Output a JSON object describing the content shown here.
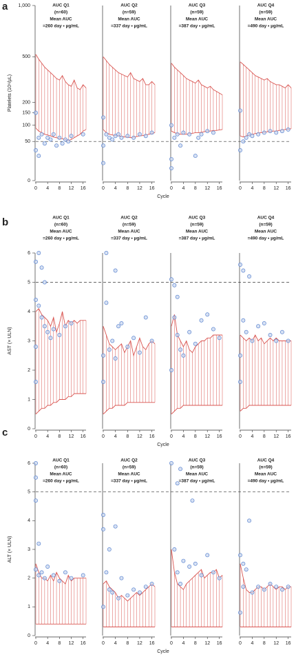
{
  "chart_data": [
    {
      "type": "band-scatter",
      "panel_label": "a",
      "ylabel": "Platelets (10⁹/μL)",
      "xlabel": "Cycle",
      "xlim": [
        0,
        17
      ],
      "xticks": [
        0,
        4,
        8,
        12,
        16
      ],
      "ylim": [
        0,
        1000
      ],
      "yscale": "sqrt",
      "yticks": [
        0,
        50,
        100,
        150,
        200,
        500,
        {
          "value": 1000,
          "label": "1,000"
        }
      ],
      "reference_line": 50,
      "band_color": "#d9534f",
      "point_color": "#5b84cf",
      "x": [
        0,
        1,
        2,
        3,
        4,
        5,
        6,
        7,
        8,
        9,
        10,
        11,
        12,
        13,
        14,
        15,
        16,
        17
      ],
      "subplots": [
        {
          "title": [
            "AUC Q1",
            "(n=60)",
            "Mean AUC",
            "=260 day • µg/mL"
          ],
          "upper": [
            520,
            480,
            450,
            420,
            400,
            380,
            360,
            340,
            330,
            360,
            320,
            300,
            290,
            330,
            280,
            270,
            300,
            280
          ],
          "lower": [
            90,
            80,
            75,
            70,
            68,
            65,
            62,
            60,
            58,
            57,
            55,
            52,
            55,
            60,
            65,
            70,
            80,
            85
          ],
          "points_x": [
            0,
            0,
            1,
            1,
            2,
            3,
            4,
            5,
            6,
            7,
            8,
            9,
            10,
            11,
            12,
            16
          ],
          "points_y": [
            150,
            30,
            20,
            60,
            70,
            45,
            60,
            55,
            70,
            40,
            60,
            45,
            55,
            50,
            65,
            70
          ]
        },
        {
          "title": [
            "AUC Q2",
            "(n=59)",
            "Mean AUC",
            "=337 day • µg/mL"
          ],
          "upper": [
            500,
            470,
            440,
            420,
            400,
            380,
            370,
            360,
            350,
            380,
            340,
            330,
            320,
            340,
            300,
            300,
            320,
            300
          ],
          "lower": [
            85,
            75,
            70,
            68,
            66,
            65,
            64,
            62,
            62,
            60,
            62,
            63,
            65,
            66,
            68,
            70,
            72,
            75
          ],
          "points_x": [
            0,
            0,
            0,
            1,
            2,
            3,
            4,
            5,
            6,
            8,
            10,
            12,
            14,
            16
          ],
          "points_y": [
            130,
            40,
            10,
            70,
            60,
            55,
            65,
            70,
            60,
            65,
            60,
            70,
            65,
            75
          ]
        },
        {
          "title": [
            "AUC Q3",
            "(n=59)",
            "Mean AUC",
            "=387 day • µg/mL"
          ],
          "upper": [
            450,
            420,
            400,
            380,
            360,
            340,
            330,
            320,
            310,
            330,
            300,
            290,
            280,
            290,
            270,
            260,
            250,
            240
          ],
          "lower": [
            80,
            75,
            72,
            70,
            70,
            70,
            72,
            73,
            75,
            75,
            76,
            78,
            80,
            80,
            82,
            82,
            84,
            85
          ],
          "points_x": [
            0,
            0,
            0,
            1,
            2,
            3,
            4,
            6,
            8,
            9,
            10,
            12,
            14
          ],
          "points_y": [
            100,
            5,
            15,
            60,
            70,
            40,
            75,
            70,
            20,
            60,
            70,
            80,
            75
          ]
        },
        {
          "title": [
            "AUC Q4",
            "(n=59)",
            "Mean AUC",
            "=490 day • µg/mL"
          ],
          "upper": [
            460,
            440,
            420,
            400,
            380,
            360,
            350,
            340,
            330,
            340,
            320,
            310,
            300,
            300,
            290,
            280,
            300,
            280
          ],
          "lower": [
            65,
            62,
            65,
            68,
            70,
            72,
            74,
            75,
            76,
            78,
            78,
            80,
            80,
            82,
            84,
            85,
            86,
            88
          ],
          "points_x": [
            0,
            0,
            1,
            2,
            3,
            4,
            6,
            8,
            10,
            12,
            14,
            16
          ],
          "points_y": [
            160,
            30,
            50,
            60,
            70,
            65,
            70,
            75,
            80,
            75,
            80,
            85
          ]
        }
      ]
    },
    {
      "type": "band-scatter",
      "panel_label": "b",
      "ylabel": "AST (× ULN)",
      "xlabel": "Cycle",
      "xlim": [
        0,
        17
      ],
      "xticks": [
        0,
        4,
        8,
        12,
        16
      ],
      "ylim": [
        0,
        6
      ],
      "yscale": "linear",
      "yticks": [
        0,
        1,
        2,
        3,
        4,
        5,
        6
      ],
      "reference_line": 5,
      "band_color": "#d9534f",
      "point_color": "#5b84cf",
      "x": [
        0,
        1,
        2,
        3,
        4,
        5,
        6,
        7,
        8,
        9,
        10,
        11,
        12,
        13,
        14,
        15,
        16,
        17
      ],
      "subplots": [
        {
          "title": [
            "AUC Q1",
            "(n=60)",
            "Mean AUC",
            "=260 day • µg/mL"
          ],
          "upper": [
            4.0,
            4.1,
            3.9,
            3.8,
            3.7,
            3.5,
            3.8,
            3.3,
            3.6,
            4.0,
            3.5,
            3.7,
            3.6,
            3.7,
            3.6,
            3.7,
            3.7,
            3.7
          ],
          "lower": [
            0.5,
            0.6,
            0.7,
            0.7,
            0.8,
            0.8,
            0.9,
            0.9,
            1.0,
            1.0,
            1.0,
            1.1,
            1.1,
            1.2,
            1.2,
            1.2,
            1.2,
            1.2
          ],
          "points_x": [
            0,
            1,
            2,
            3,
            0,
            1,
            2,
            3,
            4,
            5,
            6,
            8,
            10,
            12,
            0,
            0
          ],
          "points_y": [
            5.7,
            6.0,
            5.5,
            5.0,
            4.4,
            4.2,
            3.8,
            3.5,
            3.3,
            3.1,
            3.4,
            3.2,
            3.5,
            3.6,
            1.6,
            2.8
          ]
        },
        {
          "title": [
            "AUC Q2",
            "(n=59)",
            "Mean AUC",
            "=337 day • µg/mL"
          ],
          "upper": [
            3.5,
            3.2,
            2.9,
            2.8,
            2.7,
            2.8,
            2.9,
            2.6,
            2.8,
            3.0,
            2.5,
            2.8,
            3.1,
            2.8,
            2.7,
            2.9,
            3.0,
            2.9
          ],
          "lower": [
            0.5,
            0.6,
            0.7,
            0.7,
            0.8,
            0.8,
            0.8,
            0.8,
            0.9,
            0.9,
            0.9,
            0.9,
            0.9,
            0.9,
            0.9,
            0.9,
            0.9,
            0.9
          ],
          "points_x": [
            1,
            4,
            0,
            0,
            1,
            2,
            3,
            4,
            5,
            6,
            8,
            10,
            12,
            14,
            16
          ],
          "points_y": [
            6.0,
            5.4,
            1.6,
            2.5,
            4.3,
            2.7,
            3.0,
            2.4,
            3.5,
            3.6,
            2.8,
            3.1,
            2.6,
            3.8,
            3.0
          ]
        },
        {
          "title": [
            "AUC Q3",
            "(n=59)",
            "Mean AUC",
            "=387 day • µg/mL"
          ],
          "upper": [
            3.5,
            3.9,
            3.2,
            3.0,
            2.8,
            3.0,
            2.7,
            2.6,
            2.8,
            2.9,
            3.0,
            3.0,
            3.1,
            3.1,
            3.2,
            3.2,
            3.2,
            3.2
          ],
          "lower": [
            0.5,
            0.6,
            0.7,
            0.7,
            0.8,
            0.8,
            0.8,
            0.8,
            0.8,
            0.8,
            0.8,
            0.8,
            0.8,
            0.8,
            0.8,
            0.8,
            0.8,
            0.8
          ],
          "points_x": [
            0,
            1,
            2,
            0,
            1,
            2,
            3,
            4,
            6,
            8,
            10,
            12,
            14,
            16
          ],
          "points_y": [
            5.1,
            4.9,
            4.5,
            2.0,
            3.8,
            3.2,
            2.7,
            2.5,
            3.3,
            2.9,
            3.7,
            3.9,
            3.4,
            3.1
          ]
        },
        {
          "title": [
            "AUC Q4",
            "(n=59)",
            "Mean AUC",
            "=490 day • µg/mL"
          ],
          "upper": [
            3.2,
            3.1,
            3.0,
            3.1,
            3.0,
            3.2,
            3.0,
            3.1,
            2.9,
            3.0,
            3.1,
            3.0,
            3.1,
            3.0,
            3.0,
            3.0,
            3.0,
            3.0
          ],
          "lower": [
            0.6,
            0.7,
            0.7,
            0.8,
            0.8,
            0.8,
            0.8,
            0.8,
            0.8,
            0.8,
            0.8,
            0.8,
            0.8,
            0.8,
            0.8,
            0.8,
            0.8,
            0.8
          ],
          "points_x": [
            0,
            1,
            3,
            0,
            0,
            1,
            2,
            4,
            6,
            8,
            10,
            12,
            14,
            16
          ],
          "points_y": [
            5.6,
            5.4,
            5.2,
            1.6,
            2.5,
            3.7,
            3.3,
            3.0,
            3.5,
            3.6,
            3.2,
            3.0,
            3.3,
            3.0
          ]
        }
      ]
    },
    {
      "type": "band-scatter",
      "panel_label": "c",
      "ylabel": "ALT (× ULN)",
      "xlabel": "Cycle",
      "xlim": [
        0,
        17
      ],
      "xticks": [
        0,
        4,
        8,
        12,
        16
      ],
      "ylim": [
        0,
        6
      ],
      "yscale": "linear",
      "yticks": [
        0,
        1,
        2,
        3,
        4,
        5,
        6
      ],
      "reference_line": 5,
      "band_color": "#d9534f",
      "point_color": "#5b84cf",
      "x": [
        0,
        1,
        2,
        3,
        4,
        5,
        6,
        7,
        8,
        9,
        10,
        11,
        12,
        13,
        14,
        15,
        16,
        17
      ],
      "subplots": [
        {
          "title": [
            "AUC Q1",
            "(n=60)",
            "Mean AUC",
            "=260 day • µg/mL"
          ],
          "upper": [
            2.5,
            2.2,
            2.0,
            2.0,
            1.9,
            2.1,
            1.9,
            2.2,
            2.0,
            1.9,
            1.8,
            2.1,
            1.9,
            2.0,
            2.0,
            2.0,
            2.0,
            2.0
          ],
          "lower": [
            0.4,
            0.4,
            0.4,
            0.4,
            0.4,
            0.4,
            0.4,
            0.4,
            0.4,
            0.4,
            0.4,
            0.4,
            0.4,
            0.4,
            0.4,
            0.4,
            0.4,
            0.4
          ],
          "points_x": [
            0,
            0,
            0,
            1,
            0,
            1,
            2,
            3,
            4,
            6,
            8,
            10,
            12,
            16
          ],
          "points_y": [
            6.0,
            4.7,
            5.5,
            3.2,
            2.3,
            2.1,
            2.2,
            2.0,
            2.4,
            2.1,
            1.9,
            2.2,
            2.0,
            2.1
          ]
        },
        {
          "title": [
            "AUC Q2",
            "(n=59)",
            "Mean AUC",
            "=337 day • µg/mL"
          ],
          "upper": [
            1.8,
            1.9,
            1.7,
            1.6,
            1.5,
            1.3,
            1.4,
            1.3,
            1.2,
            1.3,
            1.4,
            1.5,
            1.4,
            1.5,
            1.6,
            1.7,
            1.8,
            1.7
          ],
          "lower": [
            0.3,
            0.3,
            0.3,
            0.3,
            0.3,
            0.3,
            0.3,
            0.3,
            0.3,
            0.3,
            0.3,
            0.3,
            0.3,
            0.3,
            0.3,
            0.3,
            0.3,
            0.3
          ],
          "points_x": [
            0,
            0,
            2,
            4,
            0,
            1,
            2,
            3,
            5,
            6,
            8,
            10,
            12,
            14,
            16
          ],
          "points_y": [
            4.2,
            3.7,
            3.0,
            3.8,
            1.0,
            2.2,
            1.6,
            1.5,
            1.3,
            2.0,
            1.4,
            1.6,
            1.5,
            1.7,
            1.8
          ]
        },
        {
          "title": [
            "AUC Q3",
            "(n=59)",
            "Mean AUC",
            "=387 day • µg/mL"
          ],
          "upper": [
            3.0,
            2.2,
            1.8,
            1.7,
            1.6,
            1.8,
            1.9,
            2.0,
            2.1,
            2.2,
            2.3,
            2.0,
            2.1,
            2.2,
            2.2,
            2.3,
            2.0,
            2.1
          ],
          "lower": [
            0.3,
            0.3,
            0.3,
            0.3,
            0.3,
            0.3,
            0.3,
            0.3,
            0.3,
            0.3,
            0.3,
            0.3,
            0.3,
            0.3,
            0.3,
            0.3,
            0.3,
            0.3
          ],
          "points_x": [
            0,
            2,
            3,
            7,
            1,
            2,
            3,
            4,
            6,
            8,
            10,
            12,
            14,
            16
          ],
          "points_y": [
            6.0,
            5.3,
            5.8,
            4.7,
            3.0,
            2.2,
            1.8,
            2.6,
            2.4,
            2.5,
            2.1,
            2.8,
            2.2,
            2.0
          ]
        },
        {
          "title": [
            "AUC Q4",
            "(n=59)",
            "Mean AUC",
            "=490 day • µg/mL"
          ],
          "upper": [
            2.5,
            2.0,
            1.6,
            1.5,
            1.5,
            1.6,
            1.7,
            1.7,
            1.6,
            1.7,
            1.8,
            1.7,
            1.6,
            1.7,
            1.7,
            1.6,
            1.7,
            1.7
          ],
          "lower": [
            0.3,
            0.3,
            0.3,
            0.3,
            0.3,
            0.3,
            0.3,
            0.3,
            0.3,
            0.3,
            0.3,
            0.3,
            0.3,
            0.3,
            0.3,
            0.3,
            0.3,
            0.3
          ],
          "points_x": [
            0,
            1,
            2,
            3,
            0,
            1,
            4,
            6,
            8,
            10,
            12,
            14,
            16
          ],
          "points_y": [
            2.8,
            2.5,
            2.3,
            4.0,
            0.8,
            1.7,
            1.5,
            1.7,
            1.6,
            1.8,
            1.7,
            1.6,
            1.7
          ]
        }
      ]
    }
  ]
}
